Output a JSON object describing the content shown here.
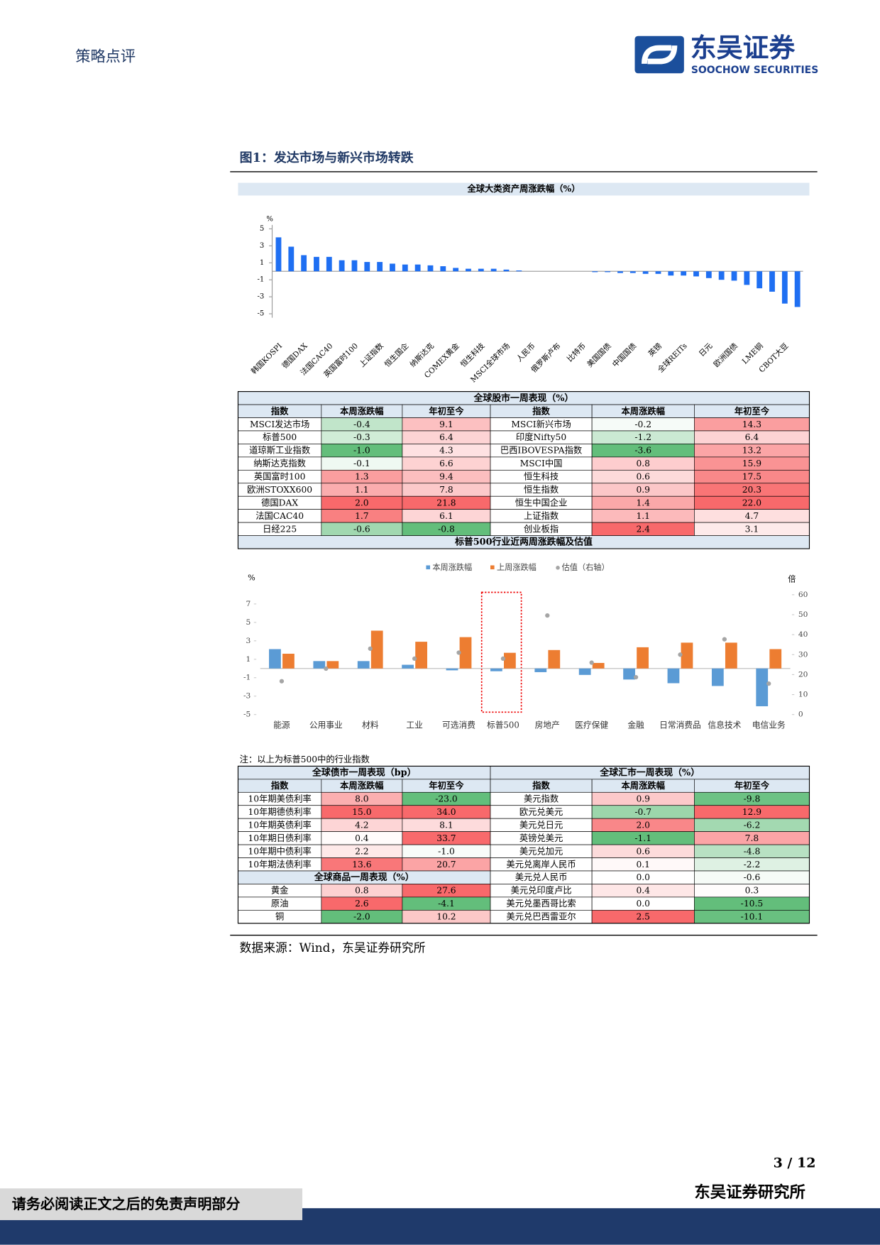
{
  "header": {
    "section": "策略点评",
    "logo_cn": "东吴证券",
    "logo_en": "SOOCHOW SECURITIES"
  },
  "figure": {
    "title": "图1：发达市场与新兴市场转跌",
    "note": "注：以上为标普500中的行业指数",
    "source": "数据来源：Wind，东吴证券研究所"
  },
  "chart_data": [
    {
      "type": "bar",
      "title": "全球大类资产周涨跌幅（%）",
      "y_unit": "%",
      "categories": [
        "韩国KOSPI",
        null,
        "德国DAX",
        null,
        "法国CAC40",
        null,
        "英国富时100",
        null,
        "上证指数",
        null,
        "恒生国企",
        null,
        "纳斯达克",
        null,
        "COMEX黄金",
        null,
        "恒生科技",
        null,
        "MSCI全球市场",
        null,
        "人民币",
        null,
        "俄罗斯卢布",
        null,
        "比特币",
        null,
        "美国国债",
        null,
        "中国国债",
        null,
        "英镑",
        null,
        "全球REITs",
        null,
        "日元",
        null,
        "欧洲国债",
        null,
        "LME铜",
        null,
        "CBOT大豆",
        null
      ],
      "values": [
        4.0,
        2.9,
        1.9,
        1.7,
        1.7,
        1.3,
        1.3,
        1.1,
        1.1,
        0.9,
        0.8,
        0.8,
        0.7,
        0.6,
        0.4,
        0.3,
        0.3,
        0.3,
        0.2,
        0.1,
        0.0,
        0.0,
        0.0,
        0.0,
        0.0,
        -0.1,
        -0.1,
        -0.2,
        -0.2,
        -0.3,
        -0.3,
        -0.5,
        -0.5,
        -0.6,
        -0.8,
        -1.0,
        -1.1,
        -1.6,
        -2.0,
        -2.4,
        -3.8,
        -4.2
      ],
      "color": "#1f6ff2",
      "ylim": [
        -5,
        5
      ],
      "yticks": [
        5,
        3,
        1,
        -1,
        -3,
        -5
      ]
    },
    {
      "type": "combo",
      "title": "标普500行业近两周涨跌幅及估值",
      "y_unit": "%",
      "y2_unit": "倍",
      "categories": [
        "能源",
        "公用事业",
        "材料",
        "工业",
        "可选消费",
        "标普500",
        "房地产",
        "医疗保健",
        "金融",
        "日常消费品",
        "信息技术",
        "电信业务"
      ],
      "series": [
        {
          "name": "本周涨跌幅",
          "color": "#5b9bd5",
          "values": [
            2.1,
            0.8,
            0.8,
            0.4,
            -0.2,
            -0.3,
            -0.4,
            -0.7,
            -1.2,
            -1.6,
            -1.9,
            -4.1
          ]
        },
        {
          "name": "上周涨跌幅",
          "color": "#ed7d31",
          "values": [
            1.6,
            0.8,
            4.1,
            2.9,
            3.4,
            1.7,
            2.0,
            0.6,
            2.3,
            2.8,
            2.8,
            2.1
          ]
        },
        {
          "name": "估值（右轴）",
          "color": "#a5a5a5",
          "axis": "y2",
          "values": [
            16.7,
            23,
            33,
            28,
            31,
            28,
            49.6,
            26,
            18.7,
            30,
            37.7,
            15.5
          ]
        }
      ],
      "ylim": [
        -5,
        8
      ],
      "yticks": [
        7,
        5,
        3,
        1,
        -1,
        -3,
        -5
      ],
      "y2lim": [
        0,
        60
      ],
      "y2ticks": [
        60,
        50,
        40,
        30,
        20,
        10,
        0
      ]
    }
  ],
  "tables": {
    "equity": {
      "title": "全球股市一周表现（%）",
      "columns": [
        "指数",
        "本周涨跌幅",
        "年初至今",
        "指数",
        "本周涨跌幅",
        "年初至今"
      ],
      "rows": [
        [
          "MSCI发达市场",
          "-0.4",
          "9.1",
          "MSCI新兴市场",
          "-0.2",
          "14.3"
        ],
        [
          "标普500",
          "-0.3",
          "6.4",
          "印度Nifty50",
          "-1.2",
          "6.4"
        ],
        [
          "道琼斯工业指数",
          "-1.0",
          "4.3",
          "巴西IBOVESPA指数",
          "-3.6",
          "13.2"
        ],
        [
          "纳斯达克指数",
          "-0.1",
          "6.6",
          "MSCI中国",
          "0.8",
          "15.9"
        ],
        [
          "英国富时100",
          "1.3",
          "9.4",
          "恒生科技",
          "0.6",
          "17.5"
        ],
        [
          "欧洲STOXX600",
          "1.1",
          "7.8",
          "恒生指数",
          "0.9",
          "20.3"
        ],
        [
          "德国DAX",
          "2.0",
          "21.8",
          "恒生中国企业",
          "1.4",
          "22.0"
        ],
        [
          "法国CAC40",
          "1.7",
          "6.1",
          "上证指数",
          "1.1",
          "4.7"
        ],
        [
          "日经225",
          "-0.6",
          "-0.8",
          "创业板指",
          "2.4",
          "3.1"
        ]
      ]
    },
    "bond": {
      "title": "全球债市一周表现（bp）",
      "columns": [
        "指数",
        "本周涨跌幅",
        "年初至今"
      ],
      "rows": [
        [
          "10年期美债利率",
          "8.0",
          "-23.0"
        ],
        [
          "10年期德债利率",
          "15.0",
          "34.0"
        ],
        [
          "10年期英债利率",
          "4.2",
          "8.1"
        ],
        [
          "10年期日债利率",
          "0.4",
          "33.7"
        ],
        [
          "10年期中债利率",
          "2.2",
          "-1.0"
        ],
        [
          "10年期法债利率",
          "13.6",
          "20.7"
        ]
      ]
    },
    "commodity": {
      "title": "全球商品一周表现（%）",
      "rows": [
        [
          "黄金",
          "0.8",
          "27.6"
        ],
        [
          "原油",
          "2.6",
          "-4.1"
        ],
        [
          "铜",
          "-2.0",
          "10.2"
        ]
      ]
    },
    "fx": {
      "title": "全球汇市一周表现（%）",
      "columns": [
        "指数",
        "本周涨跌幅",
        "年初至今"
      ],
      "rows": [
        [
          "美元指数",
          "0.9",
          "-9.8"
        ],
        [
          "欧元兑美元",
          "-0.7",
          "12.9"
        ],
        [
          "美元兑日元",
          "2.0",
          "-6.2"
        ],
        [
          "英镑兑美元",
          "-1.1",
          "7.8"
        ],
        [
          "美元兑加元",
          "0.6",
          "-4.8"
        ],
        [
          "美元兑离岸人民币",
          "0.1",
          "-2.2"
        ],
        [
          "美元兑人民币",
          "0.0",
          "-0.6"
        ],
        [
          "美元兑印度卢比",
          "0.4",
          "0.3"
        ],
        [
          "美元兑墨西哥比索",
          "0.0",
          "-10.5"
        ],
        [
          "美元兑巴西雷亚尔",
          "2.5",
          "-10.1"
        ]
      ]
    }
  },
  "page": {
    "number": "3 / 12"
  },
  "footer": {
    "disclaimer": "请务必阅读正文之后的免责声明部分",
    "org": "东吴证券研究所"
  }
}
